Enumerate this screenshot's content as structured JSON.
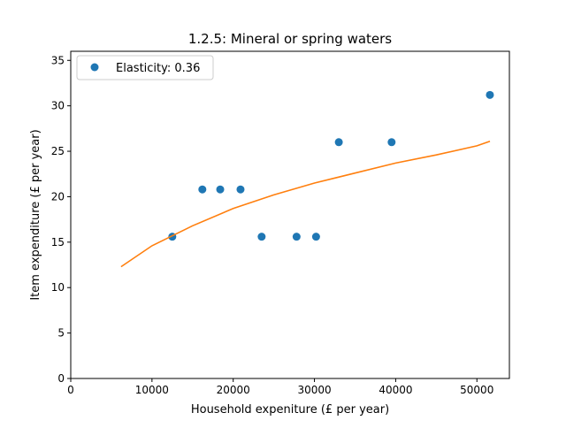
{
  "chart_data": {
    "type": "scatter",
    "title": "1.2.5: Mineral or spring waters",
    "xlabel": "Household expeniture (£ per year)",
    "ylabel": "Item expenditure (£ per year)",
    "xlim": [
      0,
      54000
    ],
    "ylim": [
      0,
      36
    ],
    "xticks": [
      0,
      10000,
      20000,
      30000,
      40000,
      50000
    ],
    "yticks": [
      0,
      5,
      10,
      15,
      20,
      25,
      30,
      35
    ],
    "grid": false,
    "legend_position": "top-left",
    "series": [
      {
        "name": "Elasticity: 0.36",
        "kind": "points",
        "color": "#1f77b4",
        "x": [
          12500,
          16200,
          18400,
          20900,
          23500,
          27800,
          30200,
          33000,
          39500,
          51600
        ],
        "y": [
          15.6,
          20.8,
          20.8,
          20.8,
          15.6,
          15.6,
          15.6,
          26.0,
          26.0,
          31.2
        ]
      },
      {
        "kind": "fitted-line",
        "color": "#ff7f0e",
        "x": [
          6200,
          10000,
          15000,
          20000,
          25000,
          30000,
          35000,
          40000,
          45000,
          50000,
          51600
        ],
        "y": [
          12.3,
          14.6,
          16.8,
          18.7,
          20.2,
          21.5,
          22.6,
          23.7,
          24.6,
          25.6,
          26.1
        ]
      }
    ]
  }
}
